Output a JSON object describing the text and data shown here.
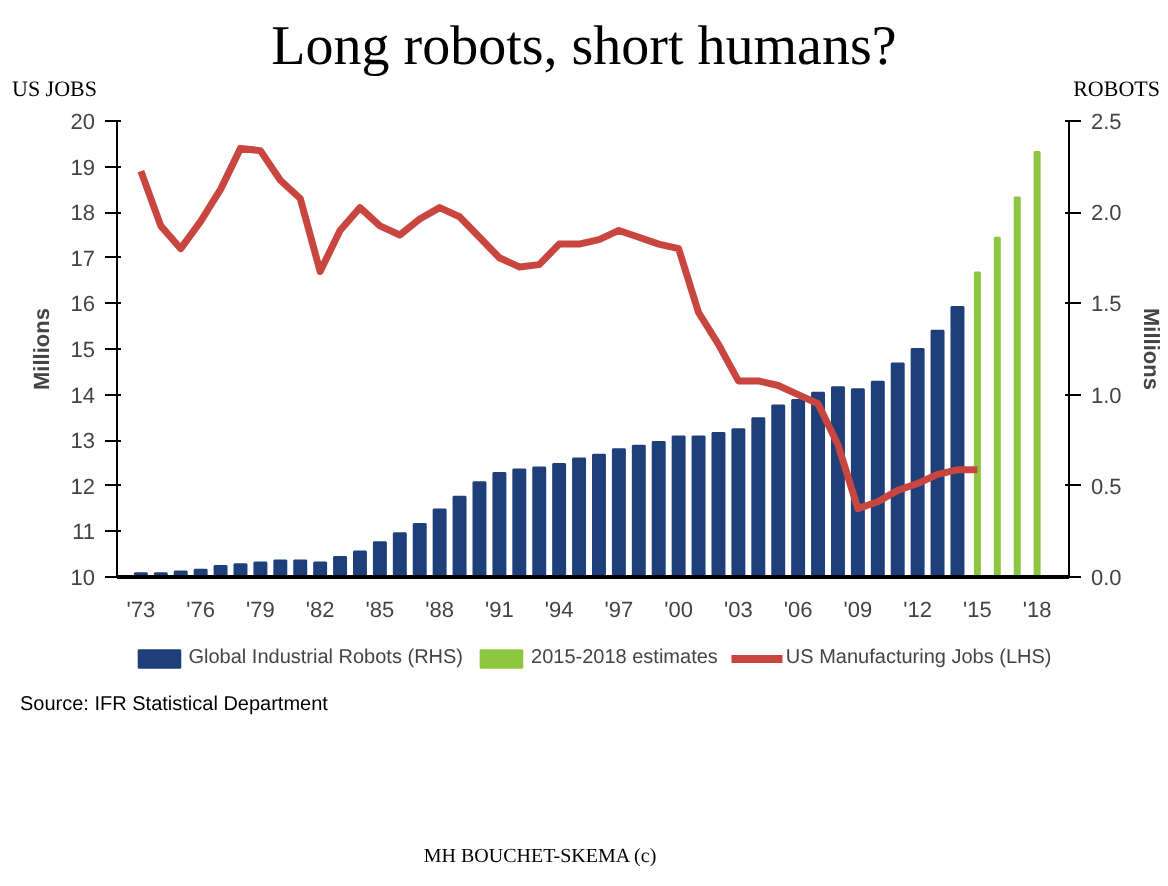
{
  "chart_data": {
    "type": "bar",
    "title": "Long robots, short humans?",
    "ylabel": "Millions",
    "y2label": "Millions",
    "annotations": [
      "US JOBS",
      "ROBOTS",
      "Source: IFR Statistical Department",
      "MH BOUCHET-SKEMA (c)"
    ],
    "series": [
      {
        "name": "Global Industrial Robots (RHS)",
        "axis": "y2",
        "color": "#1f3f7a",
        "x": [
          1973,
          1974,
          1975,
          1976,
          1977,
          1978,
          1979,
          1980,
          1981,
          1982,
          1983,
          1984,
          1985,
          1986,
          1987,
          1988,
          1989,
          1990,
          1991,
          1992,
          1993,
          1994,
          1995,
          1996,
          1997,
          1998,
          1999,
          2000,
          2001,
          2002,
          2003,
          2004,
          2005,
          2006,
          2007,
          2008,
          2009,
          2010,
          2011,
          2012,
          2013,
          2014
        ],
        "values": [
          0.02,
          0.02,
          0.03,
          0.04,
          0.06,
          0.07,
          0.08,
          0.09,
          0.09,
          0.08,
          0.11,
          0.14,
          0.19,
          0.24,
          0.29,
          0.37,
          0.44,
          0.52,
          0.57,
          0.59,
          0.6,
          0.62,
          0.65,
          0.67,
          0.7,
          0.72,
          0.74,
          0.77,
          0.77,
          0.79,
          0.81,
          0.87,
          0.94,
          0.97,
          1.01,
          1.04,
          1.03,
          1.07,
          1.17,
          1.25,
          1.35,
          1.48
        ]
      },
      {
        "name": "2015-2018 estimates",
        "axis": "y2",
        "color": "#8dc63f",
        "x": [
          2015,
          2016,
          2017,
          2018
        ],
        "values": [
          1.67,
          1.86,
          2.08,
          2.33
        ]
      },
      {
        "name": "US Manufacturing Jobs (LHS)",
        "type": "line",
        "color": "#c8463f",
        "x": [
          1973,
          1974,
          1975,
          1976,
          1977,
          1978,
          1979,
          1980,
          1981,
          1982,
          1983,
          1984,
          1985,
          1986,
          1987,
          1988,
          1989,
          1990,
          1991,
          1992,
          1993,
          1994,
          1995,
          1996,
          1997,
          1998,
          1999,
          2000,
          2001,
          2002,
          2003,
          2004,
          2005,
          2006,
          2007,
          2008,
          2009,
          2010,
          2011,
          2012,
          2013,
          2014,
          2015
        ],
        "values": [
          18.9,
          17.7,
          17.2,
          17.8,
          18.5,
          19.4,
          19.35,
          18.7,
          18.3,
          16.7,
          17.6,
          18.1,
          17.7,
          17.5,
          17.85,
          18.1,
          17.9,
          17.45,
          17.0,
          16.8,
          16.85,
          17.3,
          17.3,
          17.4,
          17.6,
          17.45,
          17.3,
          17.2,
          15.8,
          15.1,
          14.3,
          14.3,
          14.2,
          14.0,
          13.8,
          12.9,
          11.5,
          11.65,
          11.9,
          12.05,
          12.25,
          12.35,
          12.35
        ]
      }
    ],
    "xlim": [
      1971.8,
      2019.6
    ],
    "xticks": [
      {
        "value": 1973,
        "label": "'73"
      },
      {
        "value": 1976,
        "label": "'76"
      },
      {
        "value": 1979,
        "label": "'79"
      },
      {
        "value": 1982,
        "label": "'82"
      },
      {
        "value": 1985,
        "label": "'85"
      },
      {
        "value": 1988,
        "label": "'88"
      },
      {
        "value": 1991,
        "label": "'91"
      },
      {
        "value": 1994,
        "label": "'94"
      },
      {
        "value": 1997,
        "label": "'97"
      },
      {
        "value": 2000,
        "label": "'00"
      },
      {
        "value": 2003,
        "label": "'03"
      },
      {
        "value": 2006,
        "label": "'06"
      },
      {
        "value": 2009,
        "label": "'09"
      },
      {
        "value": 2012,
        "label": "'12"
      },
      {
        "value": 2015,
        "label": "'15"
      },
      {
        "value": 2018,
        "label": "'18"
      }
    ],
    "ylim": [
      10,
      20
    ],
    "yticks": [
      10,
      11,
      12,
      13,
      14,
      15,
      16,
      17,
      18,
      19,
      20
    ],
    "y2lim": [
      0,
      2.5
    ],
    "y2ticks": [
      {
        "value": 0,
        "label": "0.0"
      },
      {
        "value": 0.5,
        "label": "0.5"
      },
      {
        "value": 1,
        "label": "1.0"
      },
      {
        "value": 1.5,
        "label": "1.5"
      },
      {
        "value": 2,
        "label": "2.0"
      },
      {
        "value": 2.5,
        "label": "2.5"
      }
    ],
    "grid": false,
    "legend": "bottom"
  }
}
